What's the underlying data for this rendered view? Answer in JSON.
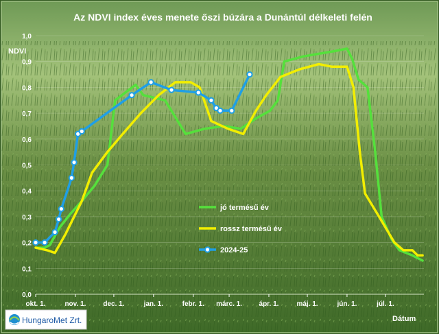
{
  "chart_data": {
    "type": "line",
    "title": "Az NDVI index éves menete őszi búzára a Dunántúl délkeleti felén",
    "ylabel": "NDVI",
    "xlabel": "Dátum",
    "ylim": [
      0,
      1
    ],
    "yticks": [
      "0,0",
      "0,1",
      "0,2",
      "0,3",
      "0,4",
      "0,5",
      "0,6",
      "0,7",
      "0,8",
      "0,9",
      "1,0"
    ],
    "x_axis": {
      "start": "2024-10-01",
      "end": "2025-07-31",
      "ticks": [
        {
          "date": "2024-10-01",
          "label": "okt. 1."
        },
        {
          "date": "2024-11-01",
          "label": "nov. 1."
        },
        {
          "date": "2024-12-01",
          "label": "dec. 1."
        },
        {
          "date": "2025-01-01",
          "label": "jan. 1."
        },
        {
          "date": "2025-02-01",
          "label": "febr. 1."
        },
        {
          "date": "2025-03-01",
          "label": "márc. 1."
        },
        {
          "date": "2025-04-01",
          "label": "ápr. 1."
        },
        {
          "date": "2025-05-01",
          "label": "máj. 1."
        },
        {
          "date": "2025-06-01",
          "label": "jún. 1."
        },
        {
          "date": "2025-07-01",
          "label": "júl. 1."
        }
      ]
    },
    "legend_position": "lower-center",
    "series": [
      {
        "name": "jó termésű év",
        "color": "#55e03c",
        "markers": false,
        "points": [
          [
            "2024-10-01",
            0.18
          ],
          [
            "2024-10-08",
            0.18
          ],
          [
            "2024-10-12",
            0.19
          ],
          [
            "2024-10-20",
            0.26
          ],
          [
            "2024-10-28",
            0.31
          ],
          [
            "2024-11-06",
            0.36
          ],
          [
            "2024-11-16",
            0.42
          ],
          [
            "2024-11-26",
            0.5
          ],
          [
            "2024-12-02",
            0.75
          ],
          [
            "2024-12-18",
            0.81
          ],
          [
            "2024-12-24",
            0.77
          ],
          [
            "2025-01-10",
            0.75
          ],
          [
            "2025-01-26",
            0.62
          ],
          [
            "2025-02-10",
            0.64
          ],
          [
            "2025-02-25",
            0.65
          ],
          [
            "2025-03-10",
            0.64
          ],
          [
            "2025-03-22",
            0.68
          ],
          [
            "2025-04-02",
            0.71
          ],
          [
            "2025-04-08",
            0.75
          ],
          [
            "2025-04-13",
            0.9
          ],
          [
            "2025-04-28",
            0.92
          ],
          [
            "2025-05-10",
            0.93
          ],
          [
            "2025-05-22",
            0.94
          ],
          [
            "2025-06-01",
            0.95
          ],
          [
            "2025-06-05",
            0.91
          ],
          [
            "2025-06-10",
            0.83
          ],
          [
            "2025-06-17",
            0.8
          ],
          [
            "2025-06-23",
            0.55
          ],
          [
            "2025-06-28",
            0.3
          ],
          [
            "2025-07-06",
            0.21
          ],
          [
            "2025-07-12",
            0.17
          ],
          [
            "2025-07-22",
            0.15
          ],
          [
            "2025-07-30",
            0.13
          ]
        ]
      },
      {
        "name": "rossz termésű év",
        "color": "#f2ee00",
        "markers": false,
        "points": [
          [
            "2024-10-01",
            0.18
          ],
          [
            "2024-10-10",
            0.17
          ],
          [
            "2024-10-16",
            0.16
          ],
          [
            "2024-10-24",
            0.23
          ],
          [
            "2024-11-06",
            0.36
          ],
          [
            "2024-11-14",
            0.47
          ],
          [
            "2024-11-26",
            0.55
          ],
          [
            "2024-12-08",
            0.62
          ],
          [
            "2024-12-22",
            0.7
          ],
          [
            "2025-01-05",
            0.77
          ],
          [
            "2025-01-18",
            0.82
          ],
          [
            "2025-01-30",
            0.82
          ],
          [
            "2025-02-06",
            0.8
          ],
          [
            "2025-02-15",
            0.67
          ],
          [
            "2025-02-28",
            0.64
          ],
          [
            "2025-03-12",
            0.62
          ],
          [
            "2025-03-22",
            0.71
          ],
          [
            "2025-03-30",
            0.77
          ],
          [
            "2025-04-10",
            0.84
          ],
          [
            "2025-04-25",
            0.87
          ],
          [
            "2025-05-10",
            0.89
          ],
          [
            "2025-05-20",
            0.88
          ],
          [
            "2025-06-01",
            0.88
          ],
          [
            "2025-06-06",
            0.8
          ],
          [
            "2025-06-11",
            0.55
          ],
          [
            "2025-06-15",
            0.39
          ],
          [
            "2025-06-26",
            0.3
          ],
          [
            "2025-07-08",
            0.2
          ],
          [
            "2025-07-15",
            0.17
          ],
          [
            "2025-07-22",
            0.17
          ],
          [
            "2025-07-26",
            0.15
          ],
          [
            "2025-07-30",
            0.15
          ]
        ]
      },
      {
        "name": "2024-25",
        "color": "#1f9fe6",
        "markers": true,
        "points": [
          [
            "2024-10-01",
            0.2
          ],
          [
            "2024-10-08",
            0.2
          ],
          [
            "2024-10-16",
            0.24
          ],
          [
            "2024-10-19",
            0.29
          ],
          [
            "2024-10-21",
            0.33
          ],
          [
            "2024-10-29",
            0.45
          ],
          [
            "2024-10-31",
            0.51
          ],
          [
            "2024-11-03",
            0.62
          ],
          [
            "2024-11-06",
            0.63
          ],
          [
            "2024-12-15",
            0.77
          ],
          [
            "2024-12-30",
            0.82
          ],
          [
            "2025-01-15",
            0.79
          ],
          [
            "2025-02-05",
            0.78
          ],
          [
            "2025-02-15",
            0.75
          ],
          [
            "2025-02-19",
            0.72
          ],
          [
            "2025-02-22",
            0.71
          ],
          [
            "2025-03-03",
            0.71
          ],
          [
            "2025-03-17",
            0.85
          ]
        ]
      }
    ]
  },
  "logo": {
    "text": "HungaroMet Zrt."
  }
}
